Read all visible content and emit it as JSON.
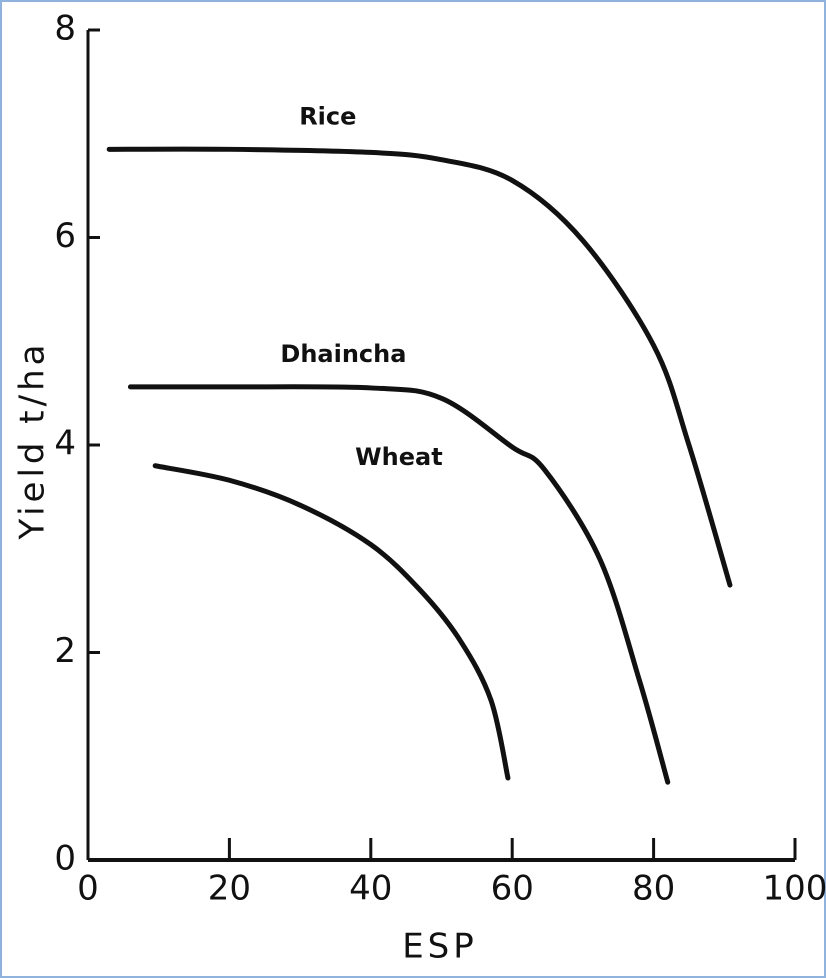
{
  "chart_data": {
    "type": "line",
    "x_label": "ESP",
    "y_label": "Yield t/ha",
    "xlim": [
      0,
      100
    ],
    "ylim": [
      0,
      8
    ],
    "xticks": [
      0,
      20,
      40,
      60,
      80,
      100
    ],
    "yticks": [
      0,
      2,
      4,
      6,
      8
    ],
    "series": [
      {
        "name": "Rice",
        "color": "#111111",
        "x": [
          3,
          20,
          40,
          50,
          60,
          70,
          80,
          85,
          90.8
        ],
        "values": [
          6.85,
          6.85,
          6.82,
          6.75,
          6.55,
          5.97,
          4.96,
          4.0,
          2.65
        ]
      },
      {
        "name": "Dhaincha",
        "color": "#111111",
        "x": [
          6,
          20,
          40,
          50,
          60,
          64.6,
          72.4,
          78,
          82
        ],
        "values": [
          4.56,
          4.56,
          4.55,
          4.45,
          3.98,
          3.76,
          2.9,
          1.73,
          0.75
        ]
      },
      {
        "name": "Wheat",
        "color": "#111111",
        "x": [
          9.5,
          20,
          30,
          40,
          47,
          52.6,
          57,
          59.4
        ],
        "values": [
          3.8,
          3.66,
          3.42,
          3.04,
          2.6,
          2.12,
          1.54,
          0.79
        ]
      }
    ]
  }
}
